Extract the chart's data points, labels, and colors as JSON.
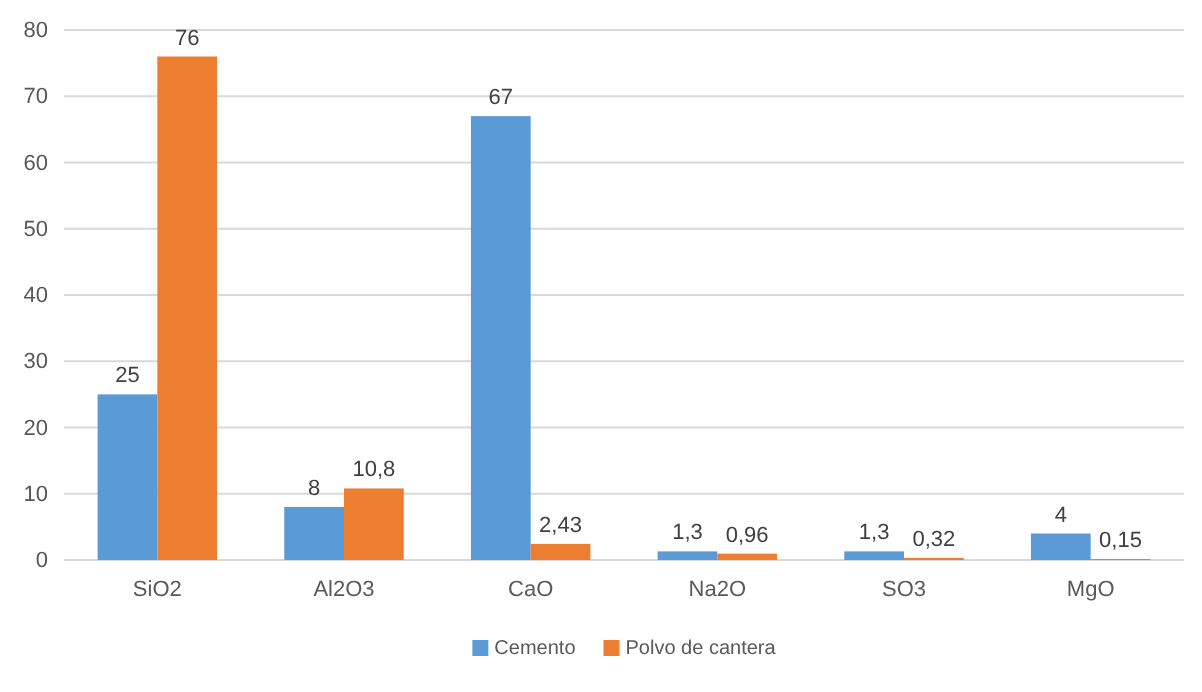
{
  "chart_data": {
    "type": "bar",
    "categories": [
      "SiO2",
      "Al2O3",
      "CaO",
      "Na2O",
      "SO3",
      "MgO"
    ],
    "series": [
      {
        "name": "Cemento",
        "color": "#5b9bd5",
        "values": [
          25,
          8,
          67,
          1.3,
          1.3,
          4
        ],
        "value_labels": [
          "25",
          "8",
          "67",
          "1,3",
          "1,3",
          "4"
        ]
      },
      {
        "name": "Polvo de cantera",
        "color": "#ed7d31",
        "values": [
          76,
          10.8,
          2.43,
          0.96,
          0.32,
          0.15
        ],
        "value_labels": [
          "76",
          "10,8",
          "2,43",
          "0,96",
          "0,32",
          "0,15"
        ]
      }
    ],
    "ylim": [
      0,
      80
    ],
    "yticks": [
      0,
      10,
      20,
      30,
      40,
      50,
      60,
      70,
      80
    ],
    "grid": "y",
    "legend": "bottom"
  }
}
